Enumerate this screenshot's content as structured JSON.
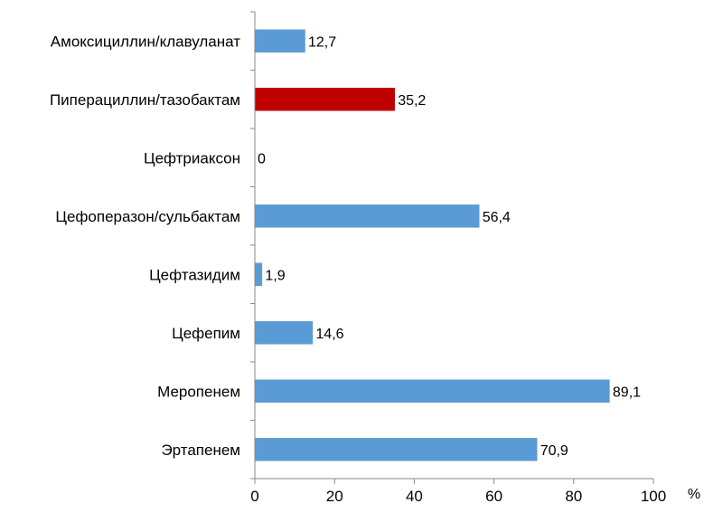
{
  "chart_data": {
    "type": "bar",
    "orientation": "horizontal",
    "categories": [
      "Амоксициллин/клавуланат",
      "Пиперациллин/тазобактам",
      "Цефтриаксон",
      "Цефоперазон/сульбактам",
      "Цефтазидим",
      "Цефепим",
      "Меропенем",
      "Эртапенем"
    ],
    "values": [
      12.7,
      35.2,
      0,
      56.4,
      1.9,
      14.6,
      89.1,
      70.9
    ],
    "value_labels": [
      "12,7",
      "35,2",
      "0",
      "56,4",
      "1,9",
      "14,6",
      "89,1",
      "70,9"
    ],
    "bar_colors": [
      "#5b9bd5",
      "#c00000",
      "#5b9bd5",
      "#5b9bd5",
      "#5b9bd5",
      "#5b9bd5",
      "#5b9bd5",
      "#5b9bd5"
    ],
    "title": "",
    "xlabel": "%",
    "ylabel": "",
    "xlim": [
      0,
      100
    ],
    "x_ticks": [
      0,
      20,
      40,
      60,
      80,
      100
    ],
    "grid": false,
    "legend": "none"
  }
}
